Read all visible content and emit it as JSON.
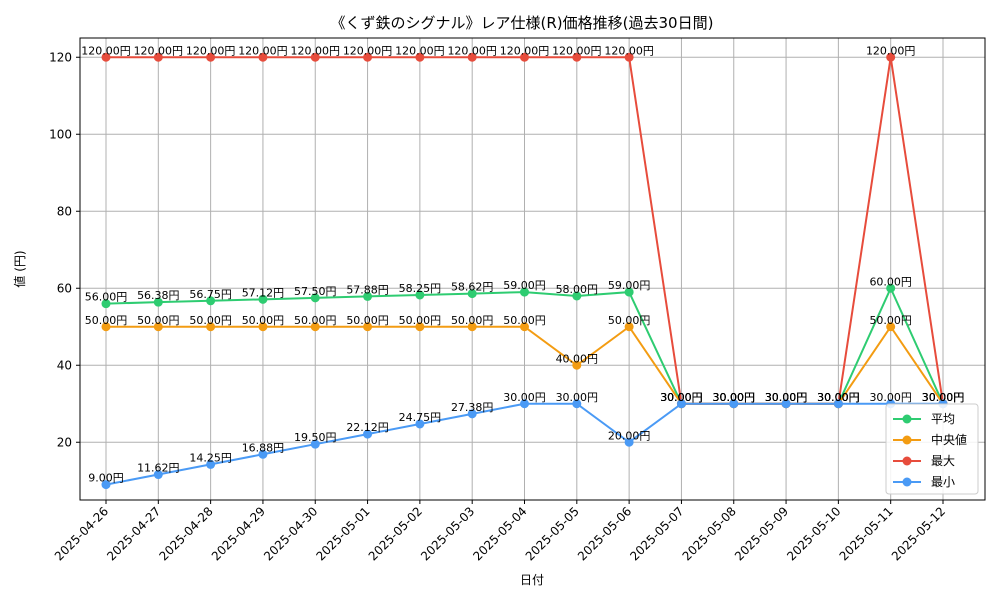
{
  "chart_data": {
    "type": "line",
    "title": "《くず鉄のシグナル》レア仕様(R)価格推移(過去30日間)",
    "xlabel": "日付",
    "ylabel": "値 (円)",
    "ylim": [
      5,
      125
    ],
    "yticks": [
      20,
      40,
      60,
      80,
      100,
      120
    ],
    "grid": true,
    "legend_position": "bottom-right",
    "label_suffix": "円",
    "x": [
      "2025-04-26",
      "2025-04-27",
      "2025-04-28",
      "2025-04-29",
      "2025-04-30",
      "2025-05-01",
      "2025-05-02",
      "2025-05-03",
      "2025-05-04",
      "2025-05-05",
      "2025-05-06",
      "2025-05-07",
      "2025-05-08",
      "2025-05-09",
      "2025-05-10",
      "2025-05-11",
      "2025-05-12"
    ],
    "series": [
      {
        "name": "平均",
        "color": "#2ecc71",
        "values": [
          56.0,
          56.38,
          56.75,
          57.12,
          57.5,
          57.88,
          58.25,
          58.62,
          59.0,
          58.0,
          59.0,
          30.0,
          30.0,
          30.0,
          30.0,
          60.0,
          30.0
        ]
      },
      {
        "name": "中央値",
        "color": "#f39c12",
        "values": [
          50.0,
          50.0,
          50.0,
          50.0,
          50.0,
          50.0,
          50.0,
          50.0,
          50.0,
          40.0,
          50.0,
          30.0,
          30.0,
          30.0,
          30.0,
          50.0,
          30.0
        ]
      },
      {
        "name": "最大",
        "color": "#e74c3c",
        "values": [
          120.0,
          120.0,
          120.0,
          120.0,
          120.0,
          120.0,
          120.0,
          120.0,
          120.0,
          120.0,
          120.0,
          30.0,
          30.0,
          30.0,
          30.0,
          120.0,
          30.0
        ]
      },
      {
        "name": "最小",
        "color": "#4a9af5",
        "values": [
          9.0,
          11.62,
          14.25,
          16.88,
          19.5,
          22.12,
          24.75,
          27.38,
          30.0,
          30.0,
          20.0,
          30.0,
          30.0,
          30.0,
          30.0,
          30.0,
          30.0
        ]
      }
    ]
  }
}
